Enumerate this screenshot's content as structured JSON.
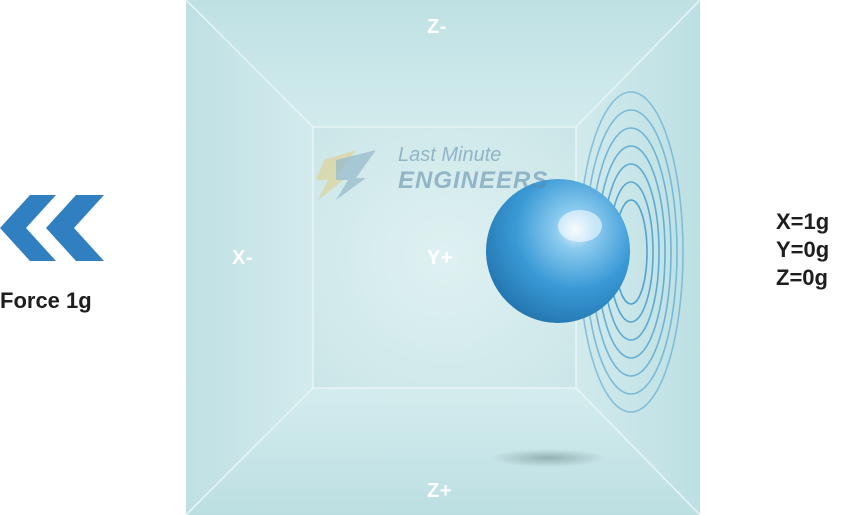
{
  "faces": {
    "top": "Z-",
    "bottom": "Z+",
    "left": "X-",
    "center": "Y+"
  },
  "force": {
    "label": "Force 1g",
    "arrow_icon": "double-chevron-left-icon",
    "arrow_color": "#2f7fc1"
  },
  "readout": {
    "x": "X=1g",
    "y": "Y=0g",
    "z": "Z=0g"
  },
  "watermark": {
    "line1": "Last Minute",
    "line2": "ENGINEERS"
  },
  "colors": {
    "box_light": "#d4ecee",
    "box_mid": "#bfe0e3",
    "box_back": "#cbe8ea",
    "ball": "#3a9ad6",
    "rings": "#4b9fd0"
  }
}
